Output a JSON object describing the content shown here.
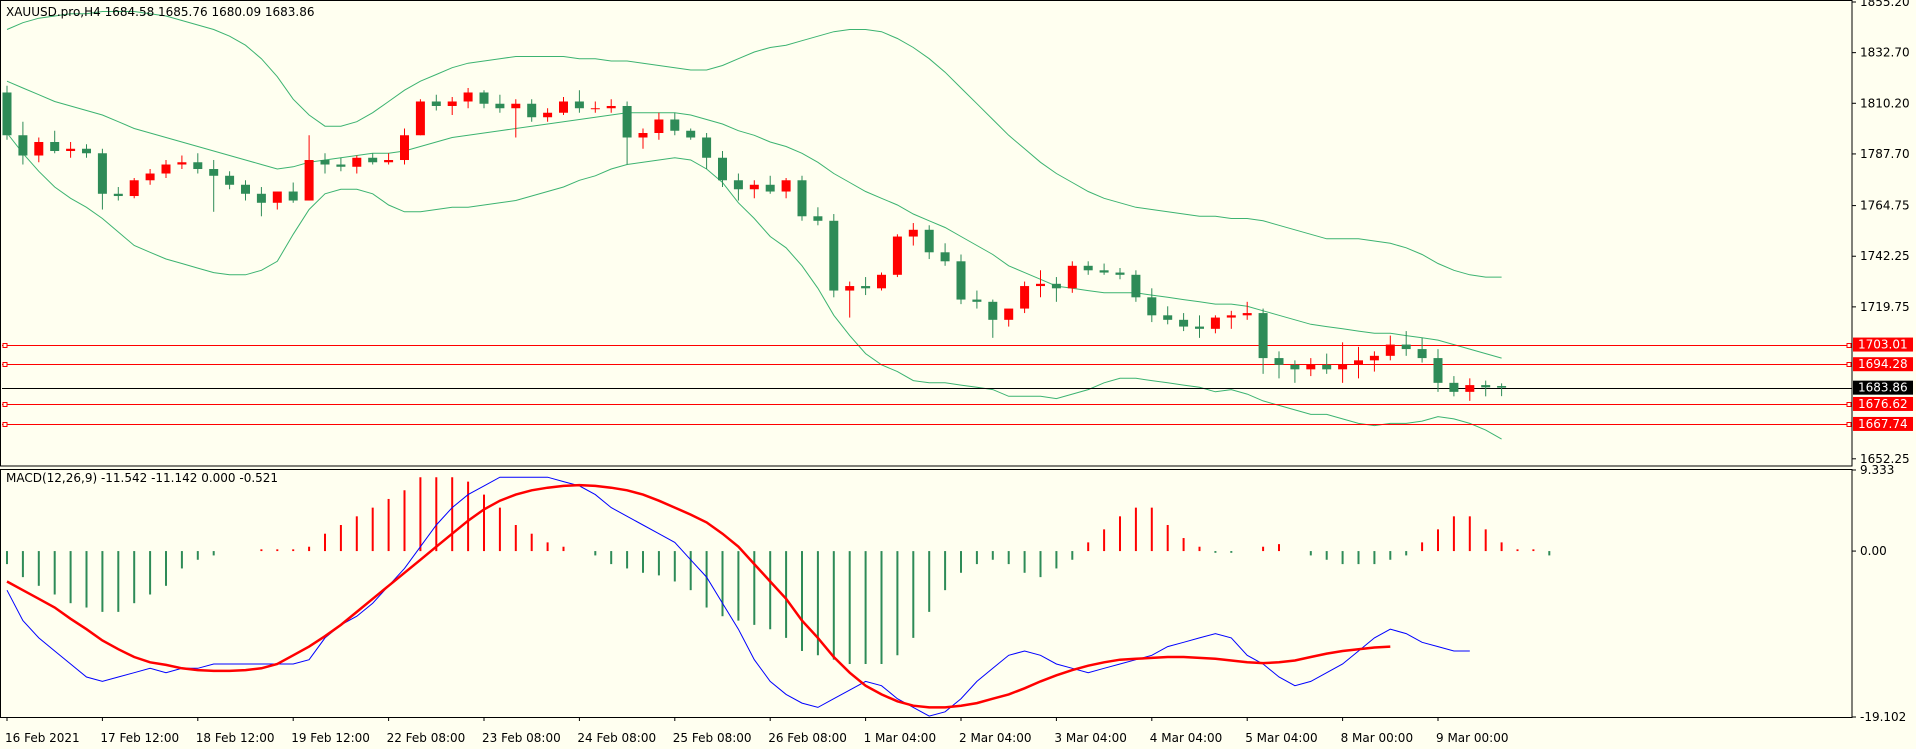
{
  "header": {
    "main": "XAUUSD.pro,H4  1684.58 1685.76 1680.09 1683.86",
    "macd": "MACD(12,26,9) -11.542 -11.142 0.000 -0.521"
  },
  "colors": {
    "background": "#fffff0",
    "bull": "#ff0000",
    "bear": "#2e8b57",
    "band": "#3cb371",
    "level": "#ff0000",
    "current": "#000000",
    "macd_line": "#0000ff",
    "signal_line": "#ff0000"
  },
  "chart_data": [
    {
      "type": "candlestick",
      "symbol": "XAUUSD.pro",
      "timeframe": "H4",
      "ohlc_display": "1684.58 1685.76 1680.09 1683.86",
      "y_ticks": [
        "1855.20",
        "1832.70",
        "1810.20",
        "1787.70",
        "1764.75",
        "1742.25",
        "1719.75",
        "1652.25"
      ],
      "ylim": [
        1649.5,
        1855.2
      ],
      "levels": [
        {
          "price": 1703.01,
          "label": "1703.01"
        },
        {
          "price": 1694.28,
          "label": "1694.28"
        },
        {
          "price": 1676.62,
          "label": "1676.62"
        },
        {
          "price": 1667.74,
          "label": "1667.74"
        }
      ],
      "current_price": {
        "price": 1683.86,
        "label": "1683.86"
      },
      "x_labels": [
        "16 Feb 2021",
        "17 Feb 12:00",
        "18 Feb 12:00",
        "19 Feb 12:00",
        "22 Feb 08:00",
        "23 Feb 08:00",
        "24 Feb 08:00",
        "25 Feb 08:00",
        "26 Feb 08:00",
        "1 Mar 04:00",
        "2 Mar 04:00",
        "3 Mar 04:00",
        "4 Mar 04:00",
        "5 Mar 04:00",
        "8 Mar 00:00",
        "9 Mar 00:00"
      ],
      "candles": [
        [
          1815,
          1818,
          1794,
          1796
        ],
        [
          1796,
          1802,
          1783,
          1787
        ],
        [
          1787,
          1795,
          1784,
          1793
        ],
        [
          1793,
          1798,
          1788,
          1789
        ],
        [
          1789,
          1793,
          1786,
          1790
        ],
        [
          1790,
          1792,
          1786,
          1788
        ],
        [
          1788,
          1790,
          1763,
          1770
        ],
        [
          1770,
          1773,
          1767,
          1769
        ],
        [
          1769,
          1777,
          1768,
          1776
        ],
        [
          1776,
          1781,
          1774,
          1779
        ],
        [
          1779,
          1785,
          1777,
          1783
        ],
        [
          1783,
          1787,
          1781,
          1784
        ],
        [
          1784,
          1788,
          1779,
          1781
        ],
        [
          1781,
          1785,
          1762,
          1778
        ],
        [
          1778,
          1780,
          1772,
          1774
        ],
        [
          1774,
          1776,
          1767,
          1770
        ],
        [
          1770,
          1773,
          1760,
          1766
        ],
        [
          1766,
          1771,
          1763,
          1771
        ],
        [
          1771,
          1775,
          1766,
          1767
        ],
        [
          1767,
          1796,
          1767,
          1785
        ],
        [
          1785,
          1788,
          1779,
          1783
        ],
        [
          1783,
          1786,
          1780,
          1782
        ],
        [
          1782,
          1787,
          1779,
          1786
        ],
        [
          1786,
          1788,
          1783,
          1784
        ],
        [
          1784,
          1788,
          1783,
          1785
        ],
        [
          1785,
          1799,
          1783,
          1796
        ],
        [
          1796,
          1812,
          1796,
          1811
        ],
        [
          1811,
          1814,
          1807,
          1809
        ],
        [
          1809,
          1813,
          1805,
          1811
        ],
        [
          1811,
          1817,
          1808,
          1815
        ],
        [
          1815,
          1816,
          1808,
          1810
        ],
        [
          1810,
          1814,
          1806,
          1808
        ],
        [
          1808,
          1812,
          1795,
          1810
        ],
        [
          1810,
          1812,
          1802,
          1804
        ],
        [
          1804,
          1808,
          1802,
          1806
        ],
        [
          1806,
          1813,
          1805,
          1811
        ],
        [
          1811,
          1816,
          1806,
          1808
        ],
        [
          1808,
          1811,
          1806,
          1808
        ],
        [
          1808,
          1812,
          1806,
          1809
        ],
        [
          1809,
          1811,
          1783,
          1795
        ],
        [
          1795,
          1799,
          1790,
          1797
        ],
        [
          1797,
          1806,
          1794,
          1803
        ],
        [
          1803,
          1806,
          1796,
          1798
        ],
        [
          1798,
          1799,
          1794,
          1795
        ],
        [
          1795,
          1797,
          1781,
          1786
        ],
        [
          1786,
          1789,
          1773,
          1776
        ],
        [
          1776,
          1779,
          1767,
          1772
        ],
        [
          1772,
          1776,
          1768,
          1774
        ],
        [
          1774,
          1778,
          1770,
          1771
        ],
        [
          1771,
          1777,
          1768,
          1776
        ],
        [
          1776,
          1778,
          1758,
          1760
        ],
        [
          1760,
          1764,
          1756,
          1758
        ],
        [
          1758,
          1761,
          1724,
          1727
        ],
        [
          1727,
          1731,
          1715,
          1729
        ],
        [
          1729,
          1733,
          1725,
          1728
        ],
        [
          1728,
          1735,
          1727,
          1734
        ],
        [
          1734,
          1752,
          1733,
          1751
        ],
        [
          1751,
          1757,
          1747,
          1754
        ],
        [
          1754,
          1756,
          1741,
          1744
        ],
        [
          1744,
          1748,
          1738,
          1740
        ],
        [
          1740,
          1743,
          1721,
          1723
        ],
        [
          1723,
          1727,
          1719,
          1722
        ],
        [
          1722,
          1723,
          1706,
          1714
        ],
        [
          1714,
          1718,
          1711,
          1719
        ],
        [
          1719,
          1731,
          1717,
          1729
        ],
        [
          1729,
          1736,
          1724,
          1730
        ],
        [
          1730,
          1733,
          1722,
          1728
        ],
        [
          1728,
          1740,
          1726,
          1738
        ],
        [
          1738,
          1740,
          1734,
          1736
        ],
        [
          1736,
          1739,
          1734,
          1735
        ],
        [
          1735,
          1737,
          1732,
          1734
        ],
        [
          1734,
          1736,
          1722,
          1724
        ],
        [
          1724,
          1728,
          1713,
          1716
        ],
        [
          1716,
          1720,
          1712,
          1714
        ],
        [
          1714,
          1717,
          1709,
          1711
        ],
        [
          1711,
          1716,
          1706,
          1710
        ],
        [
          1710,
          1716,
          1708,
          1715
        ],
        [
          1715,
          1718,
          1710,
          1716
        ],
        [
          1716,
          1722,
          1714,
          1717
        ],
        [
          1717,
          1719,
          1690,
          1697
        ],
        [
          1697,
          1700,
          1688,
          1694
        ],
        [
          1694,
          1696,
          1686,
          1692
        ],
        [
          1692,
          1697,
          1689,
          1694
        ],
        [
          1694,
          1699,
          1690,
          1692
        ],
        [
          1692,
          1704,
          1686,
          1694
        ],
        [
          1694,
          1702,
          1688,
          1696
        ],
        [
          1696,
          1700,
          1691,
          1698
        ],
        [
          1698,
          1707,
          1696,
          1703
        ],
        [
          1703,
          1709,
          1698,
          1701
        ],
        [
          1701,
          1706,
          1695,
          1697
        ],
        [
          1697,
          1701,
          1682,
          1686
        ],
        [
          1686,
          1689,
          1680,
          1682
        ],
        [
          1682,
          1688,
          1678,
          1685
        ],
        [
          1685,
          1687,
          1680,
          1684
        ],
        [
          1684.58,
          1685.76,
          1680.09,
          1683.86
        ]
      ],
      "bollinger": {
        "upper": [
          1843,
          1846,
          1848,
          1849,
          1850,
          1850,
          1851,
          1851,
          1851,
          1850,
          1849,
          1847,
          1845,
          1843,
          1840,
          1836,
          1830,
          1822,
          1812,
          1805,
          1800,
          1800,
          1802,
          1806,
          1811,
          1816,
          1820,
          1823,
          1826,
          1828,
          1829,
          1830,
          1831,
          1831,
          1831,
          1831,
          1830,
          1830,
          1829,
          1829,
          1828,
          1827,
          1826,
          1825,
          1825,
          1827,
          1830,
          1833,
          1835,
          1836,
          1838,
          1840,
          1842,
          1843,
          1843,
          1842,
          1839,
          1835,
          1830,
          1824,
          1817,
          1810,
          1803,
          1796,
          1790,
          1784,
          1779,
          1775,
          1771,
          1768,
          1766,
          1764,
          1763,
          1762,
          1761,
          1760,
          1760,
          1759,
          1759,
          1758,
          1756,
          1754,
          1752,
          1750,
          1750,
          1750,
          1749,
          1748,
          1746,
          1743,
          1739,
          1736,
          1734,
          1733,
          1733
        ],
        "middle": [
          1820,
          1817,
          1814,
          1811,
          1809,
          1807,
          1805,
          1802,
          1799,
          1797,
          1795,
          1793,
          1791,
          1789,
          1787,
          1785,
          1783,
          1781,
          1782,
          1784,
          1785,
          1786,
          1787,
          1788,
          1788,
          1789,
          1791,
          1793,
          1795,
          1796,
          1797,
          1798,
          1799,
          1800,
          1801,
          1802,
          1803,
          1804,
          1805,
          1806,
          1806,
          1806,
          1806,
          1805,
          1803,
          1801,
          1798,
          1796,
          1793,
          1791,
          1788,
          1784,
          1779,
          1775,
          1771,
          1768,
          1765,
          1761,
          1758,
          1755,
          1751,
          1747,
          1743,
          1738,
          1735,
          1732,
          1729,
          1728,
          1727,
          1726,
          1726,
          1726,
          1725,
          1724,
          1723,
          1722,
          1721,
          1721,
          1720,
          1718,
          1716,
          1714,
          1712,
          1711,
          1710,
          1709,
          1708,
          1708,
          1707,
          1706,
          1705,
          1703,
          1701,
          1699,
          1697
        ],
        "lower": [
          1797,
          1788,
          1780,
          1773,
          1768,
          1764,
          1759,
          1753,
          1747,
          1744,
          1741,
          1739,
          1737,
          1735,
          1734,
          1734,
          1736,
          1740,
          1752,
          1763,
          1770,
          1772,
          1772,
          1770,
          1765,
          1762,
          1762,
          1763,
          1764,
          1764,
          1765,
          1766,
          1767,
          1769,
          1771,
          1773,
          1776,
          1778,
          1781,
          1783,
          1784,
          1785,
          1786,
          1785,
          1781,
          1775,
          1766,
          1759,
          1751,
          1746,
          1738,
          1728,
          1716,
          1707,
          1699,
          1694,
          1691,
          1687,
          1686,
          1686,
          1685,
          1684,
          1683,
          1680,
          1680,
          1680,
          1679,
          1681,
          1683,
          1686,
          1688,
          1688,
          1687,
          1686,
          1685,
          1684,
          1682,
          1683,
          1681,
          1678,
          1676,
          1674,
          1672,
          1672,
          1670,
          1668,
          1667,
          1668,
          1668,
          1669,
          1671,
          1670,
          1668,
          1665,
          1661
        ]
      }
    },
    {
      "type": "macd",
      "title": "MACD(12,26,9) -11.542 -11.142 0.000 -0.521",
      "y_ticks": [
        "9.333",
        "0.00",
        "-19.102"
      ],
      "ylim": [
        -19.102,
        9.333
      ],
      "histogram": [
        -1.5,
        -3,
        -4,
        -5,
        -6,
        -6.5,
        -7,
        -7,
        -6,
        -5,
        -4,
        -2,
        -1,
        -0.5,
        0,
        0,
        0.2,
        0.2,
        0.2,
        0.5,
        2,
        3,
        4,
        5,
        6,
        7,
        8.5,
        8.5,
        8.5,
        8,
        6.5,
        5,
        3,
        2,
        1,
        0.5,
        0,
        -0.5,
        -1.5,
        -2,
        -2.5,
        -2.8,
        -3.5,
        -4.5,
        -6.5,
        -7.5,
        -8,
        -8.5,
        -9,
        -10,
        -11.5,
        -12,
        -12.5,
        -13,
        -13,
        -13,
        -12,
        -10,
        -7,
        -4.5,
        -2.5,
        -1.5,
        -1,
        -1.5,
        -2.5,
        -3,
        -2,
        -1,
        1,
        2.5,
        4,
        5,
        5,
        3,
        1.5,
        0.5,
        -0.2,
        -0.2,
        0,
        0.5,
        0.8,
        0,
        -0.5,
        -1,
        -1.5,
        -1.5,
        -1.5,
        -1,
        -0.5,
        1,
        2.5,
        4,
        4,
        2.5,
        1,
        0.2,
        0.2,
        -0.5
      ],
      "macd": [
        -4.5,
        -8,
        -10,
        -11.5,
        -13,
        -14.5,
        -15,
        -14.5,
        -14,
        -13.5,
        -14,
        -13.5,
        -13.5,
        -13,
        -13,
        -13,
        -13,
        -13,
        -13,
        -12.5,
        -10,
        -8.5,
        -7.5,
        -6,
        -4,
        -2,
        0.5,
        3,
        5,
        6.5,
        7.5,
        8.5,
        8.5,
        8.5,
        8.5,
        8,
        7.5,
        6.5,
        5,
        4,
        3,
        2,
        1,
        -1,
        -3,
        -6,
        -9,
        -12.5,
        -15,
        -16.5,
        -17.5,
        -18,
        -17,
        -16,
        -15,
        -15.5,
        -17,
        -18,
        -19,
        -18.5,
        -17,
        -15,
        -13.5,
        -12,
        -11.5,
        -12,
        -13,
        -13.5,
        -14,
        -13.5,
        -13,
        -12.5,
        -12,
        -11,
        -10.5,
        -10,
        -9.5,
        -10,
        -12,
        -13,
        -14.5,
        -15.5,
        -15,
        -14,
        -13,
        -11.5,
        -10,
        -9,
        -9.5,
        -10.5,
        -11,
        -11.5,
        -11.5
      ],
      "signal": [
        -3.5,
        -4.5,
        -5.5,
        -6.5,
        -7.8,
        -9,
        -10.3,
        -11.3,
        -12.2,
        -12.8,
        -13.1,
        -13.5,
        -13.7,
        -13.8,
        -13.8,
        -13.7,
        -13.5,
        -13,
        -12,
        -11,
        -9.8,
        -8.5,
        -7,
        -5.5,
        -4,
        -2.5,
        -1,
        0.5,
        2,
        3.5,
        4.8,
        5.8,
        6.5,
        7,
        7.3,
        7.5,
        7.6,
        7.5,
        7.3,
        7,
        6.5,
        5.8,
        5,
        4.2,
        3.3,
        2,
        0.5,
        -1.5,
        -3.5,
        -5.5,
        -8,
        -10,
        -12.2,
        -14,
        -15.5,
        -16.5,
        -17.3,
        -17.8,
        -18,
        -18,
        -17.8,
        -17.5,
        -17,
        -16.5,
        -15.8,
        -15,
        -14.3,
        -13.7,
        -13.2,
        -12.8,
        -12.5,
        -12.4,
        -12.3,
        -12.2,
        -12.2,
        -12.3,
        -12.4,
        -12.6,
        -12.8,
        -12.9,
        -12.8,
        -12.6,
        -12.2,
        -11.8,
        -11.5,
        -11.3,
        -11.1,
        -11
      ]
    }
  ]
}
